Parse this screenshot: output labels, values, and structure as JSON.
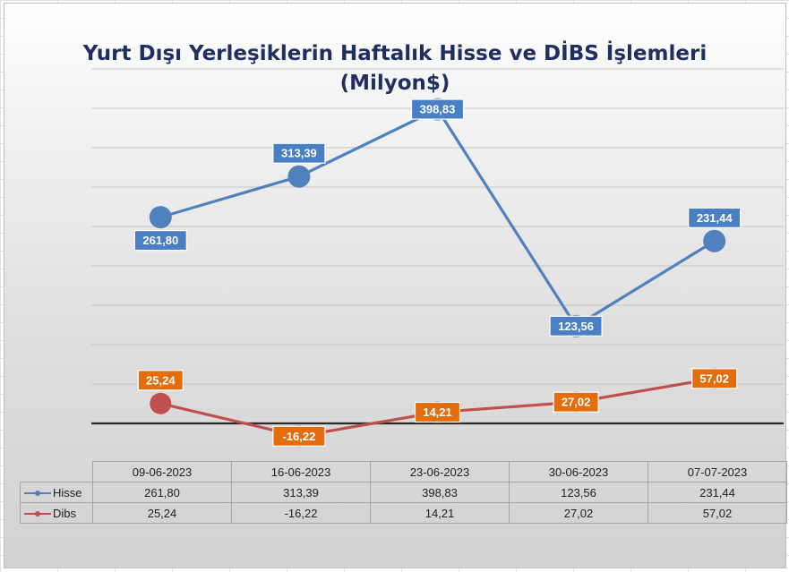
{
  "chart_data": {
    "type": "line",
    "title": "Yurt Dışı Yerleşiklerin Haftalık Hisse ve DİBS İşlemleri",
    "subtitle": "(Milyon$)",
    "categories": [
      "09-06-2023",
      "16-06-2023",
      "23-06-2023",
      "30-06-2023",
      "07-07-2023"
    ],
    "series": [
      {
        "name": "Hisse",
        "values": [
          261.8,
          313.39,
          398.83,
          123.56,
          231.44
        ],
        "labels": [
          "261,80",
          "313,39",
          "398,83",
          "123,56",
          "231,44"
        ],
        "color": "#4f81bd",
        "label_color": "#4a7fc4"
      },
      {
        "name": "Dibs",
        "values": [
          25.24,
          -16.22,
          14.21,
          27.02,
          57.02
        ],
        "labels": [
          "25,24",
          "-16,22",
          "14,21",
          "27,02",
          "57,02"
        ],
        "color": "#c0504d",
        "label_color": "#e46c0a"
      }
    ],
    "ylim": [
      -50,
      450
    ],
    "grid": true,
    "legend": "data-table"
  }
}
